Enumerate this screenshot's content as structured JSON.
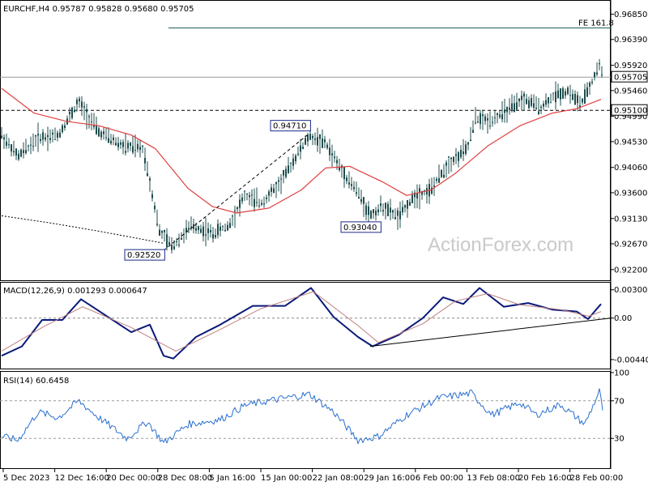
{
  "chart_data": [
    {
      "panel": "price",
      "type": "candlestick",
      "header": "EURCHF,H4  0.95787 0.95828 0.95680 0.95705",
      "symbol": "EURCHF",
      "timeframe": "H4",
      "ohlc_last": {
        "open": 0.95787,
        "high": 0.95828,
        "low": 0.9568,
        "close": 0.95705
      },
      "ylim": [
        0.9205,
        0.9705
      ],
      "y_ticks": [
        "0.96850",
        "0.96390",
        "0.95920",
        "0.95460",
        "0.94990",
        "0.94530",
        "0.94060",
        "0.93600",
        "0.93130",
        "0.92670",
        "0.92200"
      ],
      "x_ticks": [
        "5 Dec 2023",
        "12 Dec 16:00",
        "20 Dec 00:00",
        "28 Dec 08:00",
        "5 Jan 16:00",
        "15 Jan 00:00",
        "22 Jan 08:00",
        "29 Jan 16:00",
        "6 Feb 00:00",
        "13 Feb 08:00",
        "20 Feb 16:00",
        "28 Feb 00:00"
      ],
      "current_price_label": "0.95705",
      "horizontal_level": {
        "label": "0.95100",
        "value": 0.951
      },
      "fib_line": {
        "label": "FE 161.8",
        "value": 0.966
      },
      "annotations": [
        {
          "label": "0.92520",
          "value": 0.9252
        },
        {
          "label": "0.94710",
          "value": 0.9471
        },
        {
          "label": "0.93040",
          "value": 0.9304
        }
      ],
      "price_path": [
        {
          "x": 0,
          "y": 0.9465
        },
        {
          "x": 20,
          "y": 0.9425
        },
        {
          "x": 45,
          "y": 0.946
        },
        {
          "x": 70,
          "y": 0.9465
        },
        {
          "x": 95,
          "y": 0.9525
        },
        {
          "x": 120,
          "y": 0.947
        },
        {
          "x": 150,
          "y": 0.9445
        },
        {
          "x": 175,
          "y": 0.944
        },
        {
          "x": 195,
          "y": 0.929
        },
        {
          "x": 210,
          "y": 0.9262
        },
        {
          "x": 235,
          "y": 0.93
        },
        {
          "x": 260,
          "y": 0.9285
        },
        {
          "x": 280,
          "y": 0.93
        },
        {
          "x": 300,
          "y": 0.9355
        },
        {
          "x": 320,
          "y": 0.934
        },
        {
          "x": 345,
          "y": 0.938
        },
        {
          "x": 365,
          "y": 0.943
        },
        {
          "x": 380,
          "y": 0.9463
        },
        {
          "x": 400,
          "y": 0.945
        },
        {
          "x": 420,
          "y": 0.94
        },
        {
          "x": 440,
          "y": 0.936
        },
        {
          "x": 455,
          "y": 0.9318
        },
        {
          "x": 470,
          "y": 0.9335
        },
        {
          "x": 490,
          "y": 0.9315
        },
        {
          "x": 510,
          "y": 0.9355
        },
        {
          "x": 530,
          "y": 0.9365
        },
        {
          "x": 550,
          "y": 0.941
        },
        {
          "x": 575,
          "y": 0.944
        },
        {
          "x": 585,
          "y": 0.9495
        },
        {
          "x": 600,
          "y": 0.949
        },
        {
          "x": 620,
          "y": 0.9505
        },
        {
          "x": 645,
          "y": 0.953
        },
        {
          "x": 665,
          "y": 0.9515
        },
        {
          "x": 685,
          "y": 0.954
        },
        {
          "x": 700,
          "y": 0.9545
        },
        {
          "x": 715,
          "y": 0.952
        },
        {
          "x": 730,
          "y": 0.9565
        },
        {
          "x": 738,
          "y": 0.9594
        },
        {
          "x": 742,
          "y": 0.957
        }
      ],
      "series": [
        {
          "color": "#e04040",
          "values": [
            {
              "x": 0,
              "y": 0.955
            },
            {
              "x": 40,
              "y": 0.9505
            },
            {
              "x": 80,
              "y": 0.949
            },
            {
              "x": 120,
              "y": 0.9482
            },
            {
              "x": 160,
              "y": 0.9465
            },
            {
              "x": 190,
              "y": 0.944
            },
            {
              "x": 230,
              "y": 0.9368
            },
            {
              "x": 260,
              "y": 0.9335
            },
            {
              "x": 290,
              "y": 0.9323
            },
            {
              "x": 330,
              "y": 0.9332
            },
            {
              "x": 370,
              "y": 0.9365
            },
            {
              "x": 400,
              "y": 0.9405
            },
            {
              "x": 430,
              "y": 0.9408
            },
            {
              "x": 470,
              "y": 0.938
            },
            {
              "x": 500,
              "y": 0.9355
            },
            {
              "x": 530,
              "y": 0.9365
            },
            {
              "x": 560,
              "y": 0.9395
            },
            {
              "x": 600,
              "y": 0.9445
            },
            {
              "x": 640,
              "y": 0.9482
            },
            {
              "x": 680,
              "y": 0.9505
            },
            {
              "x": 710,
              "y": 0.9513
            },
            {
              "x": 740,
              "y": 0.953
            }
          ]
        },
        {
          "color": "#000000",
          "style": "dotted",
          "values": [
            {
              "x": 0,
              "y": 0.9318
            },
            {
              "x": 60,
              "y": 0.9305
            },
            {
              "x": 120,
              "y": 0.929
            },
            {
              "x": 200,
              "y": 0.9268
            }
          ]
        },
        {
          "color": "#000000",
          "style": "dashed",
          "values": [
            {
              "x": 200,
              "y": 0.9255
            },
            {
              "x": 380,
              "y": 0.9468
            }
          ]
        }
      ]
    },
    {
      "panel": "macd",
      "type": "line",
      "title": "MACD(12,26,9) 0.001293 0.000647",
      "ylim": [
        -0.0051,
        0.0035
      ],
      "y_ticks": [
        "0.003006",
        "0.00",
        "-0.004403"
      ],
      "series": [
        {
          "color": "#0a1a7a",
          "values": [
            {
              "x": 0,
              "y": -0.004
            },
            {
              "x": 25,
              "y": -0.003
            },
            {
              "x": 50,
              "y": -0.0002
            },
            {
              "x": 75,
              "y": -0.0002
            },
            {
              "x": 98,
              "y": 0.002
            },
            {
              "x": 130,
              "y": 0.0002
            },
            {
              "x": 160,
              "y": -0.0015
            },
            {
              "x": 183,
              "y": -0.0007
            },
            {
              "x": 200,
              "y": -0.004
            },
            {
              "x": 212,
              "y": -0.0043
            },
            {
              "x": 240,
              "y": -0.002
            },
            {
              "x": 270,
              "y": -0.0007
            },
            {
              "x": 310,
              "y": 0.0013
            },
            {
              "x": 350,
              "y": 0.0013
            },
            {
              "x": 382,
              "y": 0.0032
            },
            {
              "x": 410,
              "y": 0.0001
            },
            {
              "x": 440,
              "y": -0.002
            },
            {
              "x": 458,
              "y": -0.003
            },
            {
              "x": 490,
              "y": -0.0018
            },
            {
              "x": 520,
              "y": 0.0
            },
            {
              "x": 545,
              "y": 0.0022
            },
            {
              "x": 570,
              "y": 0.0015
            },
            {
              "x": 590,
              "y": 0.0032
            },
            {
              "x": 620,
              "y": 0.0012
            },
            {
              "x": 650,
              "y": 0.0016
            },
            {
              "x": 680,
              "y": 0.0009
            },
            {
              "x": 710,
              "y": 0.0007
            },
            {
              "x": 724,
              "y": -0.0001
            },
            {
              "x": 740,
              "y": 0.0015
            }
          ]
        },
        {
          "color": "#c08080",
          "values": [
            {
              "x": 0,
              "y": -0.0035
            },
            {
              "x": 50,
              "y": -0.001
            },
            {
              "x": 100,
              "y": 0.0012
            },
            {
              "x": 160,
              "y": -0.001
            },
            {
              "x": 215,
              "y": -0.0035
            },
            {
              "x": 270,
              "y": -0.0012
            },
            {
              "x": 320,
              "y": 0.001
            },
            {
              "x": 385,
              "y": 0.0028
            },
            {
              "x": 440,
              "y": -0.0008
            },
            {
              "x": 465,
              "y": -0.0026
            },
            {
              "x": 520,
              "y": -0.0006
            },
            {
              "x": 560,
              "y": 0.0018
            },
            {
              "x": 600,
              "y": 0.0026
            },
            {
              "x": 640,
              "y": 0.0014
            },
            {
              "x": 690,
              "y": 0.0009
            },
            {
              "x": 725,
              "y": 0.0002
            },
            {
              "x": 740,
              "y": 0.0007
            }
          ]
        },
        {
          "color": "#000000",
          "values": [
            {
              "x": 455,
              "y": -0.003
            },
            {
              "x": 752,
              "y": 0.0
            }
          ]
        }
      ]
    },
    {
      "panel": "rsi",
      "type": "line",
      "title": "RSI(14) 60.6458",
      "ylim": [
        0,
        100
      ],
      "y_ticks": [
        "100",
        "70",
        "30"
      ],
      "series": [
        {
          "color": "#2a6fcf",
          "values": [
            {
              "x": 0,
              "y": 32
            },
            {
              "x": 20,
              "y": 28
            },
            {
              "x": 45,
              "y": 58
            },
            {
              "x": 70,
              "y": 52
            },
            {
              "x": 95,
              "y": 70
            },
            {
              "x": 120,
              "y": 52
            },
            {
              "x": 155,
              "y": 30
            },
            {
              "x": 180,
              "y": 48
            },
            {
              "x": 200,
              "y": 25
            },
            {
              "x": 230,
              "y": 45
            },
            {
              "x": 270,
              "y": 50
            },
            {
              "x": 300,
              "y": 65
            },
            {
              "x": 330,
              "y": 70
            },
            {
              "x": 380,
              "y": 77
            },
            {
              "x": 410,
              "y": 58
            },
            {
              "x": 440,
              "y": 28
            },
            {
              "x": 465,
              "y": 32
            },
            {
              "x": 500,
              "y": 55
            },
            {
              "x": 540,
              "y": 73
            },
            {
              "x": 580,
              "y": 78
            },
            {
              "x": 605,
              "y": 55
            },
            {
              "x": 640,
              "y": 68
            },
            {
              "x": 660,
              "y": 55
            },
            {
              "x": 690,
              "y": 66
            },
            {
              "x": 720,
              "y": 45
            },
            {
              "x": 738,
              "y": 80
            },
            {
              "x": 742,
              "y": 61
            }
          ]
        }
      ]
    }
  ],
  "watermark": "ActionForex.com"
}
